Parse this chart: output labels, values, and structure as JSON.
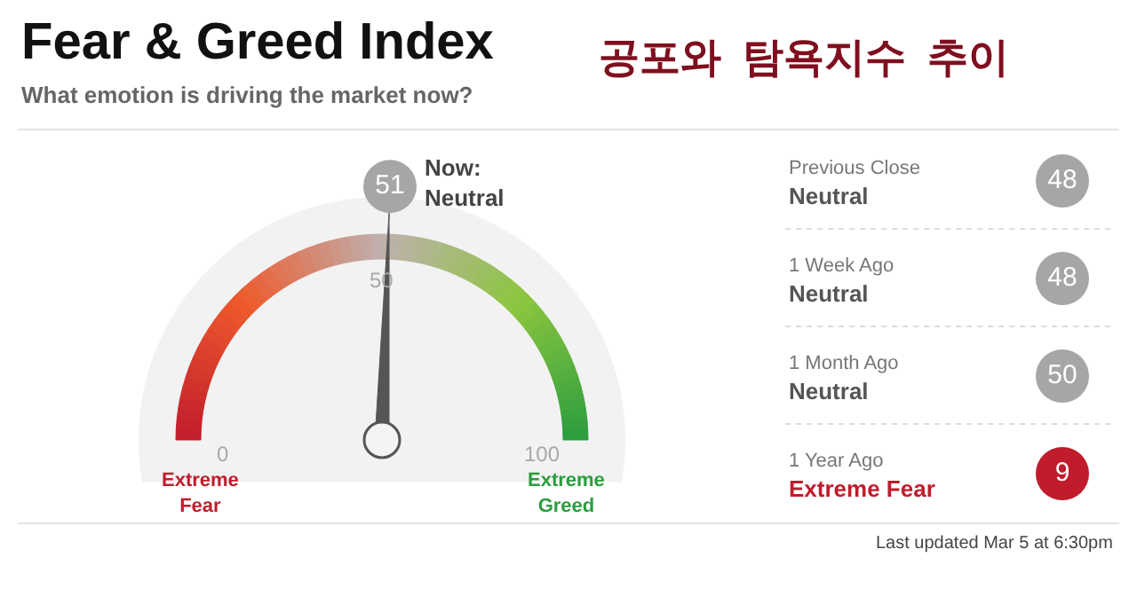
{
  "chart_data": [
    {
      "type": "other",
      "title": "Fear & Greed Index",
      "subtitle": "What emotion is driving the market now?",
      "values": [
        51
      ],
      "data_labels": true,
      "annotations": [
        "공포와  탐욕지수  추이",
        "0",
        "50",
        "100",
        "Now:\nNeutral",
        "Extreme\nFear",
        "Extreme\nGreed"
      ]
    },
    {
      "type": "other",
      "categories": [
        "Previous Close\nNeutral",
        "1 Week Ago\nNeutral",
        "1 Month Ago\nNeutral",
        "1 Year Ago\nExtreme Fear"
      ],
      "values": [
        48,
        48,
        50,
        9
      ],
      "data_labels": true,
      "colors": [
        "#a6a6a6",
        "#a6a6a6",
        "#a6a6a6",
        "#c01c2c"
      ],
      "annotations": [
        "Last updated Mar 5 at 6:30pm"
      ]
    }
  ]
}
